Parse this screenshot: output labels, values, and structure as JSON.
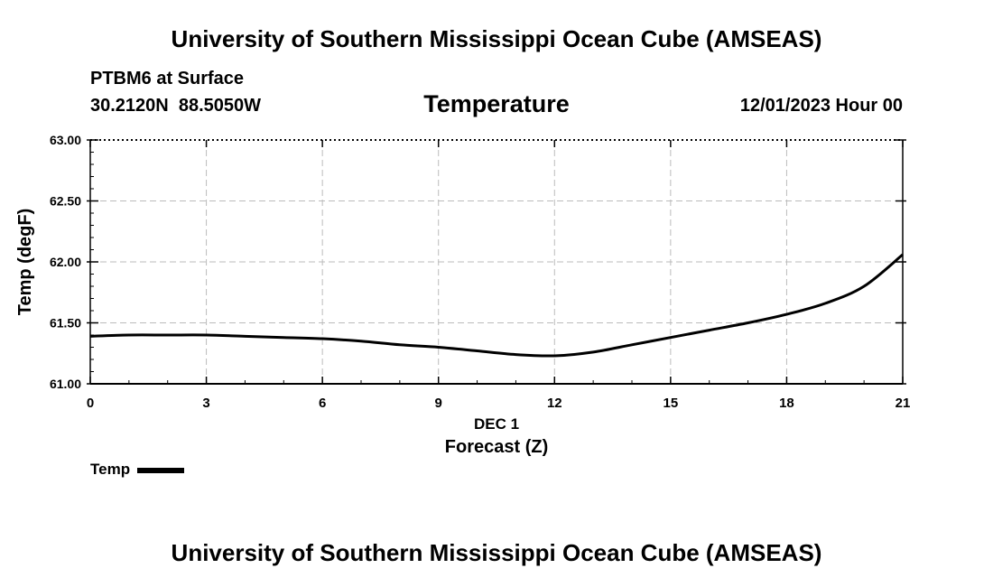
{
  "header": {
    "title": "University of Southern Mississippi Ocean Cube (AMSEAS)",
    "station": "PTBM6 at Surface",
    "coords": "30.2120N  88.5050W",
    "parameter": "Temperature",
    "datetime": "12/01/2023 Hour 00"
  },
  "footer": {
    "title": "University of Southern Mississippi Ocean Cube (AMSEAS)"
  },
  "legend": {
    "label": "Temp",
    "color": "#000000"
  },
  "chart_data": {
    "type": "line",
    "title": "Temperature",
    "xlabel": "Forecast (Z)",
    "xsublabel": "DEC 1",
    "ylabel": "Temp (degF)",
    "xlim": [
      0,
      21
    ],
    "ylim": [
      61.0,
      63.0
    ],
    "xticks": [
      0,
      3,
      6,
      9,
      12,
      15,
      18,
      21
    ],
    "xtick_labels": [
      "0",
      "3",
      "6",
      "9",
      "12",
      "15",
      "18",
      "21"
    ],
    "yticks": [
      61.0,
      61.5,
      62.0,
      62.5,
      63.0
    ],
    "ytick_labels": [
      "61.00",
      "61.50",
      "62.00",
      "62.50",
      "63.00"
    ],
    "grid": true,
    "series": [
      {
        "name": "Temp",
        "color": "#000000",
        "x": [
          0,
          1,
          2,
          3,
          4,
          5,
          6,
          7,
          8,
          9,
          10,
          11,
          12,
          13,
          14,
          15,
          16,
          17,
          18,
          19,
          20,
          21
        ],
        "values": [
          61.39,
          61.4,
          61.4,
          61.4,
          61.39,
          61.38,
          61.37,
          61.35,
          61.32,
          61.3,
          61.27,
          61.24,
          61.23,
          61.26,
          61.32,
          61.38,
          61.44,
          61.5,
          61.57,
          61.66,
          61.8,
          62.06
        ]
      }
    ]
  }
}
